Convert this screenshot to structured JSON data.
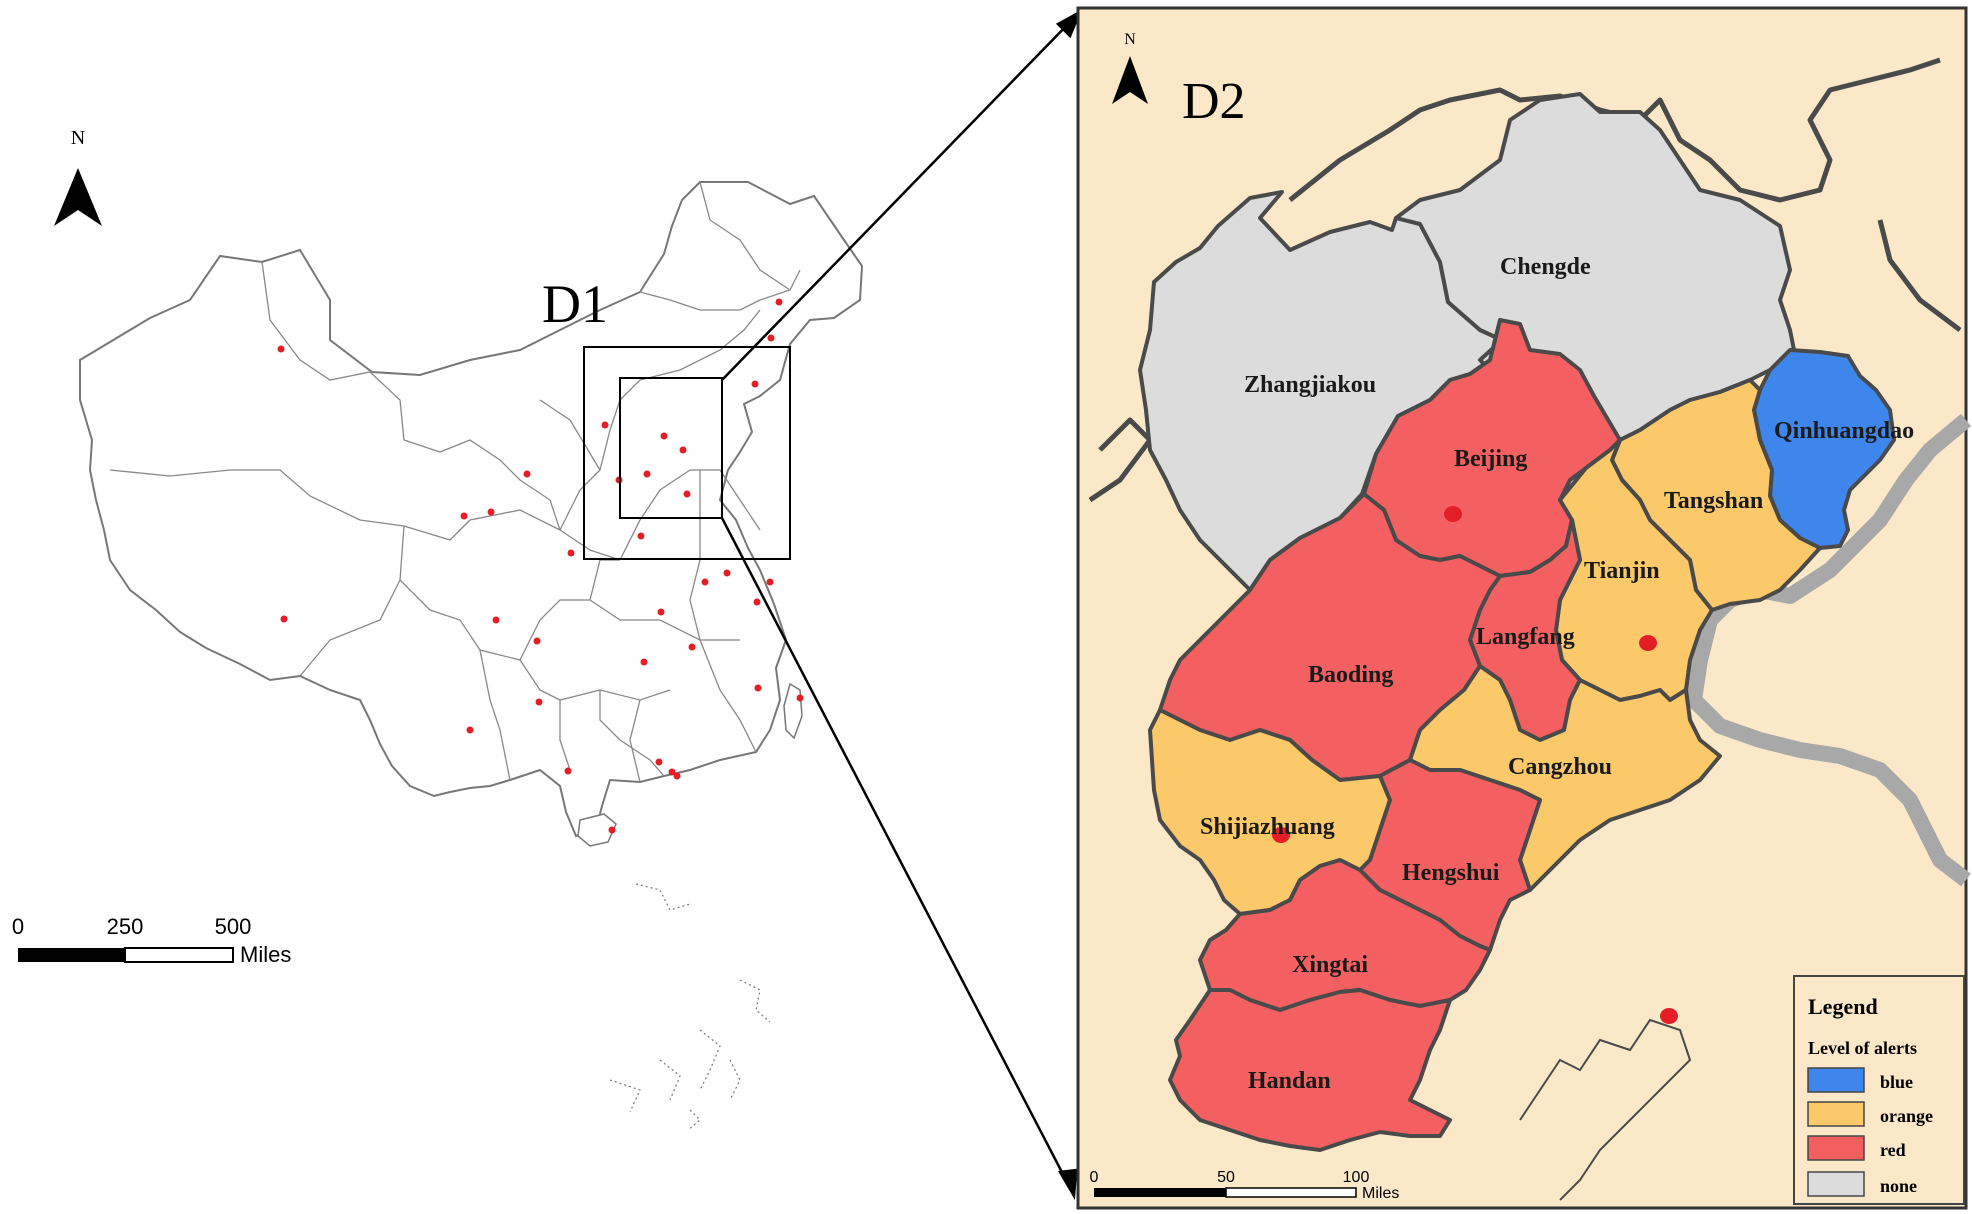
{
  "panel_d1": {
    "label": "D1",
    "north_label": "N",
    "scale_ticks": [
      "0",
      "250",
      "500"
    ],
    "scale_unit": "Miles"
  },
  "panel_d2": {
    "label": "D2",
    "north_label": "N",
    "scale_ticks": [
      "0",
      "50",
      "100"
    ],
    "scale_unit": "Miles",
    "cities": [
      {
        "name": "Zhangjiakou",
        "alert": "none"
      },
      {
        "name": "Chengde",
        "alert": "none"
      },
      {
        "name": "Qinhuangdao",
        "alert": "blue"
      },
      {
        "name": "Beijing",
        "alert": "red"
      },
      {
        "name": "Tangshan",
        "alert": "orange"
      },
      {
        "name": "Tianjin",
        "alert": "orange"
      },
      {
        "name": "Langfang",
        "alert": "red"
      },
      {
        "name": "Baoding",
        "alert": "red"
      },
      {
        "name": "Cangzhou",
        "alert": "orange"
      },
      {
        "name": "Shijiazhuang",
        "alert": "orange"
      },
      {
        "name": "Hengshui",
        "alert": "red"
      },
      {
        "name": "Xingtai",
        "alert": "red"
      },
      {
        "name": "Handan",
        "alert": "red"
      }
    ]
  },
  "legend": {
    "title": "Legend",
    "subtitle": "Level of alerts",
    "items": [
      {
        "label": "blue",
        "color": "#3f86ec"
      },
      {
        "label": "orange",
        "color": "#fbc96a"
      },
      {
        "label": "red",
        "color": "#f46061"
      },
      {
        "label": "none",
        "color": "#dcdcdc"
      }
    ]
  },
  "colors": {
    "sea_background": "#fbe8c8",
    "border": "#4a4a4a",
    "marker": "#e41e26"
  }
}
